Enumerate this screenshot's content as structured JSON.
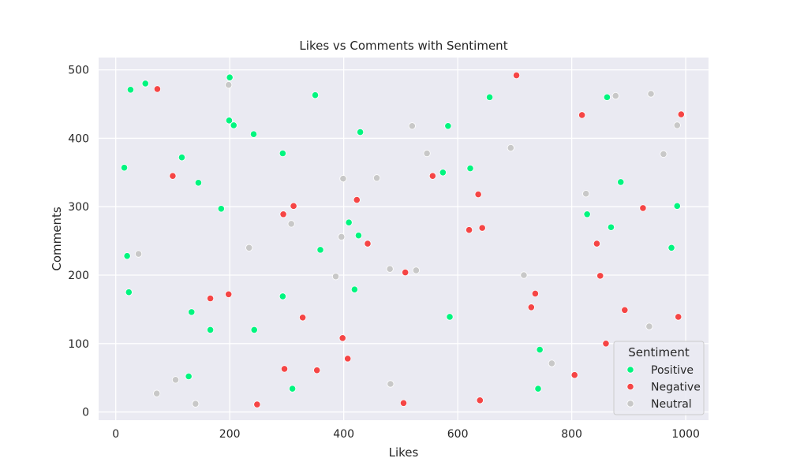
{
  "chart_data": {
    "type": "scatter",
    "title": "Likes vs Comments with Sentiment",
    "xlabel": "Likes",
    "ylabel": "Comments",
    "xlim": [
      -30,
      1040
    ],
    "ylim": [
      -12,
      518
    ],
    "xticks": [
      0,
      200,
      400,
      600,
      800,
      1000
    ],
    "yticks": [
      0,
      100,
      200,
      300,
      400,
      500
    ],
    "grid": true,
    "legend_title": "Sentiment",
    "legend_position": "lower-right",
    "series": [
      {
        "name": "Positive",
        "color": "#00f57f",
        "points": [
          [
            15,
            357
          ],
          [
            20,
            228
          ],
          [
            23,
            175
          ],
          [
            26,
            471
          ],
          [
            52,
            480
          ],
          [
            116,
            372
          ],
          [
            128,
            52
          ],
          [
            133,
            146
          ],
          [
            145,
            335
          ],
          [
            166,
            120
          ],
          [
            185,
            297
          ],
          [
            199,
            426
          ],
          [
            200,
            489
          ],
          [
            207,
            419
          ],
          [
            242,
            406
          ],
          [
            243,
            120
          ],
          [
            293,
            378
          ],
          [
            293,
            169
          ],
          [
            310,
            34
          ],
          [
            350,
            463
          ],
          [
            359,
            237
          ],
          [
            409,
            277
          ],
          [
            419,
            179
          ],
          [
            426,
            258
          ],
          [
            429,
            409
          ],
          [
            574,
            350
          ],
          [
            583,
            418
          ],
          [
            586,
            139
          ],
          [
            622,
            356
          ],
          [
            656,
            460
          ],
          [
            741,
            34
          ],
          [
            744,
            91
          ],
          [
            827,
            289
          ],
          [
            862,
            460
          ],
          [
            869,
            270
          ],
          [
            886,
            336
          ],
          [
            975,
            240
          ],
          [
            985,
            301
          ]
        ]
      },
      {
        "name": "Negative",
        "color": "#f54545",
        "points": [
          [
            73,
            472
          ],
          [
            100,
            345
          ],
          [
            166,
            166
          ],
          [
            198,
            172
          ],
          [
            248,
            11
          ],
          [
            294,
            289
          ],
          [
            296,
            63
          ],
          [
            312,
            301
          ],
          [
            328,
            138
          ],
          [
            353,
            61
          ],
          [
            398,
            108
          ],
          [
            407,
            78
          ],
          [
            423,
            310
          ],
          [
            442,
            246
          ],
          [
            505,
            13
          ],
          [
            508,
            204
          ],
          [
            556,
            345
          ],
          [
            620,
            266
          ],
          [
            636,
            318
          ],
          [
            639,
            17
          ],
          [
            643,
            269
          ],
          [
            703,
            492
          ],
          [
            729,
            153
          ],
          [
            736,
            173
          ],
          [
            805,
            54
          ],
          [
            818,
            434
          ],
          [
            844,
            246
          ],
          [
            850,
            199
          ],
          [
            860,
            100
          ],
          [
            893,
            149
          ],
          [
            925,
            298
          ],
          [
            987,
            139
          ],
          [
            992,
            435
          ]
        ]
      },
      {
        "name": "Neutral",
        "color": "#c8c8c8",
        "points": [
          [
            40,
            231
          ],
          [
            72,
            27
          ],
          [
            105,
            47
          ],
          [
            140,
            12
          ],
          [
            198,
            478
          ],
          [
            234,
            240
          ],
          [
            308,
            275
          ],
          [
            386,
            198
          ],
          [
            396,
            256
          ],
          [
            399,
            341
          ],
          [
            458,
            342
          ],
          [
            481,
            209
          ],
          [
            482,
            41
          ],
          [
            520,
            418
          ],
          [
            527,
            207
          ],
          [
            546,
            378
          ],
          [
            693,
            386
          ],
          [
            716,
            200
          ],
          [
            765,
            71
          ],
          [
            825,
            319
          ],
          [
            877,
            462
          ],
          [
            936,
            125
          ],
          [
            939,
            465
          ],
          [
            961,
            377
          ],
          [
            985,
            419
          ]
        ]
      }
    ]
  }
}
